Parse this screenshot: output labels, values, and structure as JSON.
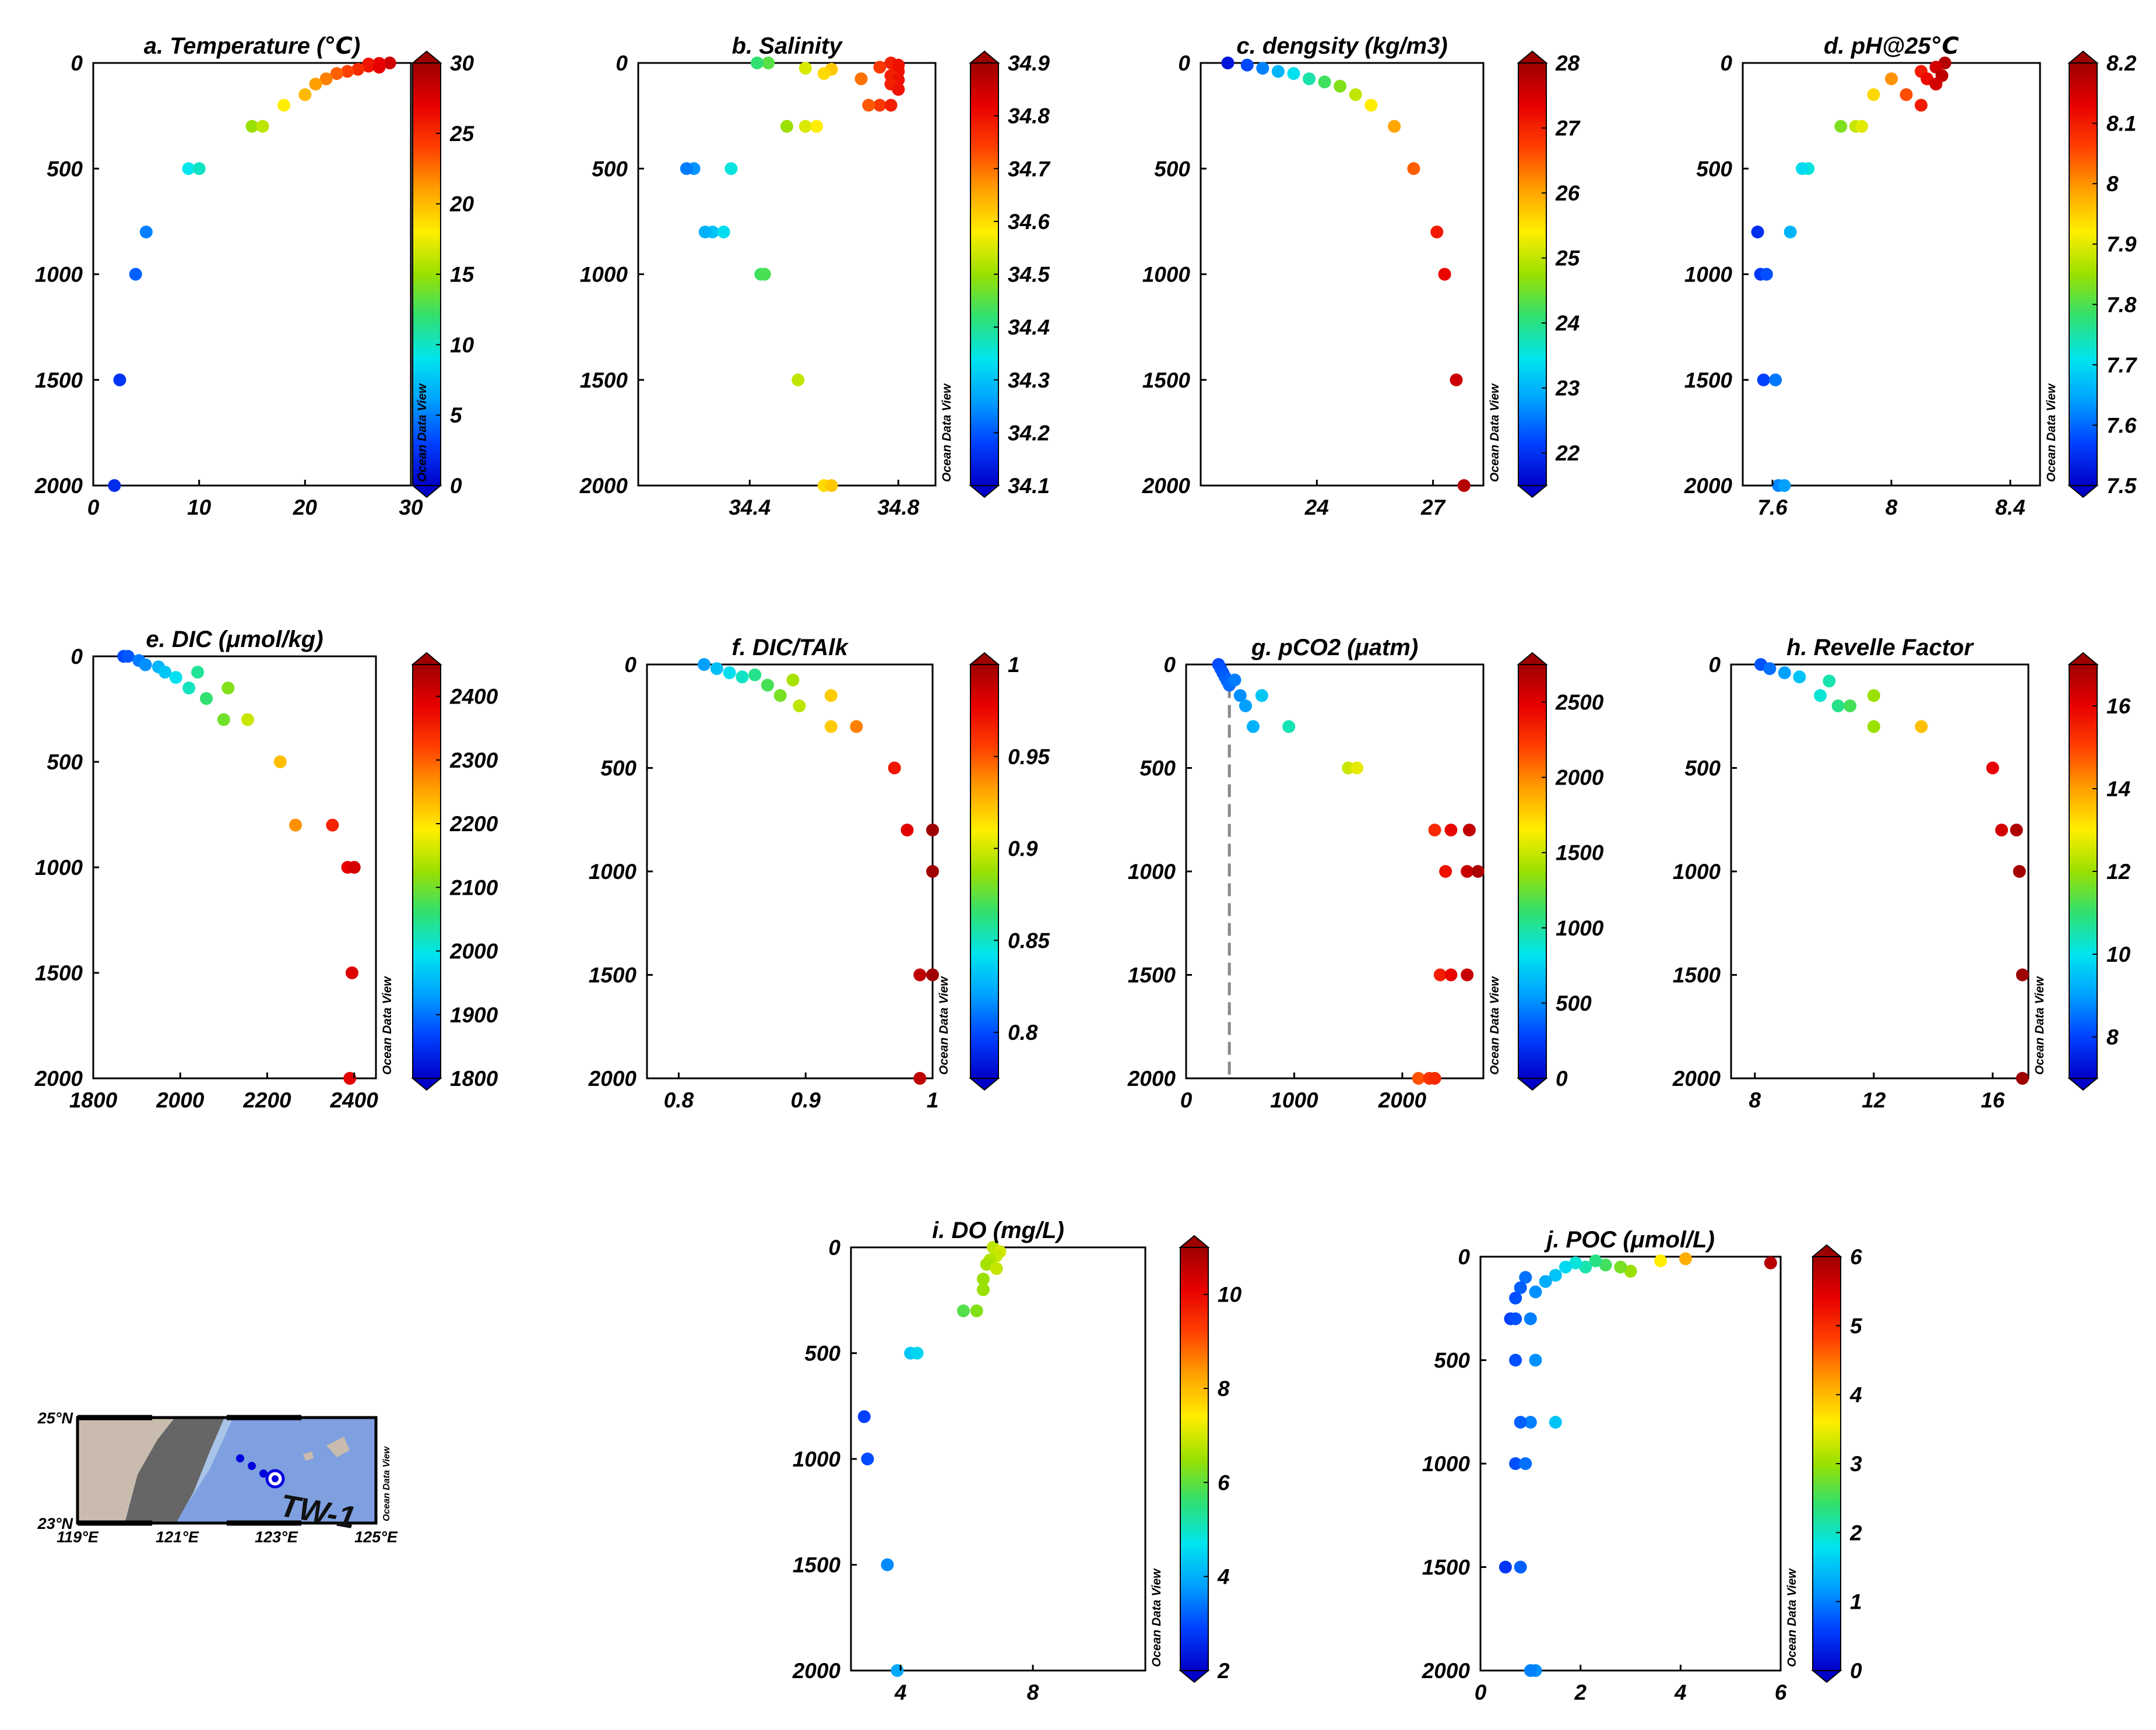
{
  "colormap": [
    "#0000c8",
    "#0040ff",
    "#00a0ff",
    "#00e5ee",
    "#30e070",
    "#9ae000",
    "#ffee00",
    "#ffa000",
    "#ff4000",
    "#e80000",
    "#9e0000"
  ],
  "watermark": "Ocean Data View",
  "map": {
    "lat_labels": [
      "25°N",
      "23°N"
    ],
    "lon_labels": [
      "119°E",
      "121°E",
      "123°E",
      "125°E"
    ],
    "station_label": "TW-1",
    "watermark": "Ocean Data View",
    "colors": {
      "land": "#c9bcae",
      "ocean": "#7fa0e0",
      "shelf": "#a8c4e8",
      "taiwan": "#666666",
      "station": "#0000dd"
    }
  },
  "chart_data": [
    {
      "id": "a",
      "type": "scatter",
      "title": "a.  Temperature (℃)",
      "xlim": [
        0,
        30
      ],
      "ylim": [
        2000,
        0
      ],
      "xticks": [
        0,
        10,
        20,
        30
      ],
      "yticks": [
        0,
        500,
        1000,
        1500,
        2000
      ],
      "cbar": [
        0,
        30
      ],
      "cbticks": [
        0,
        5,
        10,
        15,
        20,
        25,
        30
      ],
      "points": [
        [
          28,
          0
        ],
        [
          27,
          2
        ],
        [
          26,
          5
        ],
        [
          26,
          15
        ],
        [
          27,
          20
        ],
        [
          25,
          30
        ],
        [
          24,
          40
        ],
        [
          23,
          50
        ],
        [
          22,
          75
        ],
        [
          21,
          100
        ],
        [
          20,
          150
        ],
        [
          18,
          200
        ],
        [
          15,
          300
        ],
        [
          16,
          300
        ],
        [
          9,
          500
        ],
        [
          10,
          500
        ],
        [
          5,
          800
        ],
        [
          4,
          1000
        ],
        [
          2.5,
          1500
        ],
        [
          2,
          2000
        ]
      ]
    },
    {
      "id": "b",
      "type": "scatter",
      "title": "b.  Salinity",
      "xlim": [
        34.1,
        34.9
      ],
      "ylim": [
        2000,
        0
      ],
      "xticks": [
        34.4,
        34.8
      ],
      "yticks": [
        0,
        500,
        1000,
        1500,
        2000
      ],
      "cbar": [
        34.1,
        34.9
      ],
      "cbticks": [
        34.1,
        34.2,
        34.3,
        34.4,
        34.5,
        34.6,
        34.7,
        34.8,
        34.9
      ],
      "points": [
        [
          34.78,
          0
        ],
        [
          34.8,
          10
        ],
        [
          34.75,
          20
        ],
        [
          34.8,
          40
        ],
        [
          34.78,
          60
        ],
        [
          34.8,
          80
        ],
        [
          34.78,
          100
        ],
        [
          34.8,
          125
        ],
        [
          34.75,
          200
        ],
        [
          34.78,
          200
        ],
        [
          34.72,
          200
        ],
        [
          34.7,
          75
        ],
        [
          34.62,
          30
        ],
        [
          34.6,
          50
        ],
        [
          34.55,
          25
        ],
        [
          34.45,
          0
        ],
        [
          34.42,
          0
        ],
        [
          34.5,
          300
        ],
        [
          34.55,
          300
        ],
        [
          34.58,
          300
        ],
        [
          34.25,
          500
        ],
        [
          34.23,
          500
        ],
        [
          34.35,
          500
        ],
        [
          34.3,
          800
        ],
        [
          34.33,
          800
        ],
        [
          34.28,
          800
        ],
        [
          34.43,
          1000
        ],
        [
          34.44,
          1000
        ],
        [
          34.53,
          1500
        ],
        [
          34.6,
          2000
        ],
        [
          34.62,
          2000
        ]
      ]
    },
    {
      "id": "c",
      "type": "scatter",
      "title": "c.  dengsity (kg/m3)",
      "xlim": [
        21,
        28.3
      ],
      "ylim": [
        2000,
        0
      ],
      "xticks": [
        24,
        27
      ],
      "yticks": [
        0,
        500,
        1000,
        1500,
        2000
      ],
      "cbar": [
        21.5,
        28
      ],
      "cbticks": [
        22,
        23,
        24,
        25,
        26,
        27,
        28
      ],
      "points": [
        [
          21.7,
          0
        ],
        [
          22.2,
          10
        ],
        [
          22.6,
          25
        ],
        [
          23,
          40
        ],
        [
          23.4,
          50
        ],
        [
          23.8,
          75
        ],
        [
          24.2,
          90
        ],
        [
          24.6,
          110
        ],
        [
          25,
          150
        ],
        [
          25.4,
          200
        ],
        [
          26,
          300
        ],
        [
          26.5,
          500
        ],
        [
          27.1,
          800
        ],
        [
          27.3,
          1000
        ],
        [
          27.6,
          1500
        ],
        [
          27.8,
          2000
        ]
      ]
    },
    {
      "id": "d",
      "type": "scatter",
      "title": "d.  pH@25℃",
      "xlim": [
        7.5,
        8.5
      ],
      "ylim": [
        2000,
        0
      ],
      "xticks": [
        7.6,
        8,
        8.4
      ],
      "yticks": [
        0,
        500,
        1000,
        1500,
        2000
      ],
      "cbar": [
        7.5,
        8.2
      ],
      "cbticks": [
        7.5,
        7.6,
        7.7,
        7.8,
        7.9,
        8,
        8.1,
        8.2
      ],
      "points": [
        [
          8.18,
          0
        ],
        [
          8.15,
          20
        ],
        [
          8.1,
          40
        ],
        [
          8.17,
          60
        ],
        [
          8.12,
          75
        ],
        [
          8.15,
          100
        ],
        [
          8.05,
          150
        ],
        [
          8.1,
          200
        ],
        [
          8.0,
          75
        ],
        [
          7.94,
          150
        ],
        [
          7.88,
          300
        ],
        [
          7.9,
          300
        ],
        [
          7.83,
          300
        ],
        [
          7.72,
          500
        ],
        [
          7.7,
          500
        ],
        [
          7.66,
          800
        ],
        [
          7.55,
          800
        ],
        [
          7.56,
          1000
        ],
        [
          7.58,
          1000
        ],
        [
          7.57,
          1500
        ],
        [
          7.61,
          1500
        ],
        [
          7.62,
          2000
        ],
        [
          7.64,
          2000
        ]
      ]
    },
    {
      "id": "e",
      "type": "scatter",
      "title": "e.  DIC (μmol/kg)",
      "xlim": [
        1800,
        2450
      ],
      "ylim": [
        2000,
        0
      ],
      "xticks": [
        1800,
        2000,
        2200,
        2400
      ],
      "yticks": [
        0,
        500,
        1000,
        1500,
        2000
      ],
      "cbar": [
        1800,
        2450
      ],
      "cbticks": [
        1800,
        1900,
        2000,
        2100,
        2200,
        2300,
        2400
      ],
      "points": [
        [
          1870,
          0
        ],
        [
          1880,
          0
        ],
        [
          1905,
          20
        ],
        [
          1920,
          40
        ],
        [
          1950,
          50
        ],
        [
          1965,
          75
        ],
        [
          1990,
          100
        ],
        [
          2020,
          150
        ],
        [
          2040,
          75
        ],
        [
          2060,
          200
        ],
        [
          2110,
          150
        ],
        [
          2100,
          300
        ],
        [
          2155,
          300
        ],
        [
          2230,
          500
        ],
        [
          2265,
          800
        ],
        [
          2350,
          800
        ],
        [
          2385,
          1000
        ],
        [
          2400,
          1000
        ],
        [
          2395,
          1500
        ],
        [
          2390,
          2000
        ]
      ]
    },
    {
      "id": "f",
      "type": "scatter",
      "title": "f.  DIC/TAlk",
      "xlim": [
        0.775,
        1
      ],
      "ylim": [
        2000,
        0
      ],
      "xticks": [
        0.8,
        0.9,
        1
      ],
      "yticks": [
        0,
        500,
        1000,
        1500,
        2000
      ],
      "cbar": [
        0.775,
        1
      ],
      "cbticks": [
        0.8,
        0.85,
        0.9,
        0.95,
        1
      ],
      "points": [
        [
          0.82,
          0
        ],
        [
          0.83,
          20
        ],
        [
          0.84,
          40
        ],
        [
          0.85,
          60
        ],
        [
          0.86,
          50
        ],
        [
          0.87,
          100
        ],
        [
          0.88,
          150
        ],
        [
          0.89,
          75
        ],
        [
          0.895,
          200
        ],
        [
          0.92,
          150
        ],
        [
          0.92,
          300
        ],
        [
          0.94,
          300
        ],
        [
          0.97,
          500
        ],
        [
          0.98,
          800
        ],
        [
          1,
          800
        ],
        [
          1,
          1000
        ],
        [
          0.99,
          1500
        ],
        [
          1,
          1500
        ],
        [
          0.99,
          2000
        ]
      ]
    },
    {
      "id": "g",
      "type": "scatter",
      "title": "g.  pCO2 (μatm)",
      "xlim": [
        0,
        2750
      ],
      "ylim": [
        2000,
        0
      ],
      "xticks": [
        0,
        1000,
        2000
      ],
      "yticks": [
        0,
        500,
        1000,
        1500,
        2000
      ],
      "cbar": [
        0,
        2750
      ],
      "cbticks": [
        0,
        500,
        1000,
        1500,
        2000,
        2500
      ],
      "ref_x": 400,
      "points": [
        [
          300,
          0
        ],
        [
          320,
          20
        ],
        [
          340,
          40
        ],
        [
          360,
          60
        ],
        [
          380,
          80
        ],
        [
          400,
          100
        ],
        [
          450,
          75
        ],
        [
          500,
          150
        ],
        [
          550,
          200
        ],
        [
          700,
          150
        ],
        [
          620,
          300
        ],
        [
          950,
          300
        ],
        [
          1500,
          500
        ],
        [
          1580,
          500
        ],
        [
          2300,
          800
        ],
        [
          2450,
          800
        ],
        [
          2620,
          800
        ],
        [
          2400,
          1000
        ],
        [
          2600,
          1000
        ],
        [
          2700,
          1000
        ],
        [
          2350,
          1500
        ],
        [
          2450,
          1500
        ],
        [
          2600,
          1500
        ],
        [
          2150,
          2000
        ],
        [
          2250,
          2000
        ],
        [
          2300,
          2000
        ]
      ]
    },
    {
      "id": "h",
      "type": "scatter",
      "title": "h.  Revelle Factor",
      "xlim": [
        7.2,
        17.2
      ],
      "ylim": [
        2000,
        0
      ],
      "xticks": [
        8,
        12,
        16
      ],
      "yticks": [
        0,
        500,
        1000,
        1500,
        2000
      ],
      "cbar": [
        7,
        17
      ],
      "cbticks": [
        8,
        10,
        12,
        14,
        16
      ],
      "points": [
        [
          8.2,
          0
        ],
        [
          8.5,
          20
        ],
        [
          9,
          40
        ],
        [
          9.5,
          60
        ],
        [
          10.5,
          80
        ],
        [
          10.2,
          150
        ],
        [
          10.8,
          200
        ],
        [
          11.2,
          200
        ],
        [
          12,
          150
        ],
        [
          12,
          300
        ],
        [
          13.6,
          300
        ],
        [
          16,
          500
        ],
        [
          16.3,
          800
        ],
        [
          16.8,
          800
        ],
        [
          16.9,
          1000
        ],
        [
          17,
          1500
        ],
        [
          17,
          2000
        ]
      ]
    },
    {
      "id": "i",
      "type": "scatter",
      "title": "i.  DO (mg/L)",
      "xlim": [
        2.5,
        11.4
      ],
      "ylim": [
        2000,
        0
      ],
      "xticks": [
        4,
        8
      ],
      "yticks": [
        0,
        500,
        1000,
        1500,
        2000
      ],
      "cbar": [
        2,
        11
      ],
      "cbticks": [
        2,
        4,
        6,
        8,
        10
      ],
      "points": [
        [
          6.8,
          0
        ],
        [
          7,
          20
        ],
        [
          6.9,
          40
        ],
        [
          6.7,
          60
        ],
        [
          6.6,
          80
        ],
        [
          6.9,
          100
        ],
        [
          6.5,
          150
        ],
        [
          6.5,
          200
        ],
        [
          6.3,
          300
        ],
        [
          5.9,
          300
        ],
        [
          4.3,
          500
        ],
        [
          4.5,
          500
        ],
        [
          2.9,
          800
        ],
        [
          3.0,
          1000
        ],
        [
          3.6,
          1500
        ],
        [
          3.9,
          2000
        ]
      ]
    },
    {
      "id": "j",
      "type": "scatter",
      "title": "j.  POC (μmol/L)",
      "xlim": [
        0,
        6
      ],
      "ylim": [
        2000,
        0
      ],
      "xticks": [
        0,
        2,
        4,
        6
      ],
      "yticks": [
        0,
        500,
        1000,
        1500,
        2000
      ],
      "cbar": [
        0,
        6
      ],
      "cbticks": [
        0,
        1,
        2,
        3,
        4,
        5,
        6
      ],
      "points": [
        [
          5.8,
          30
        ],
        [
          4.1,
          10
        ],
        [
          3.6,
          20
        ],
        [
          3.0,
          70
        ],
        [
          2.8,
          50
        ],
        [
          2.5,
          40
        ],
        [
          2.3,
          20
        ],
        [
          2.1,
          50
        ],
        [
          1.9,
          30
        ],
        [
          1.7,
          50
        ],
        [
          1.5,
          90
        ],
        [
          1.3,
          120
        ],
        [
          1.1,
          170
        ],
        [
          0.9,
          100
        ],
        [
          0.8,
          150
        ],
        [
          0.7,
          200
        ],
        [
          0.6,
          300
        ],
        [
          0.7,
          300
        ],
        [
          1.0,
          300
        ],
        [
          0.7,
          500
        ],
        [
          1.1,
          500
        ],
        [
          1.5,
          800
        ],
        [
          1.0,
          800
        ],
        [
          0.8,
          800
        ],
        [
          0.7,
          1000
        ],
        [
          0.9,
          1000
        ],
        [
          0.5,
          1500
        ],
        [
          0.8,
          1500
        ],
        [
          1.1,
          2000
        ],
        [
          1.0,
          2000
        ]
      ]
    }
  ]
}
